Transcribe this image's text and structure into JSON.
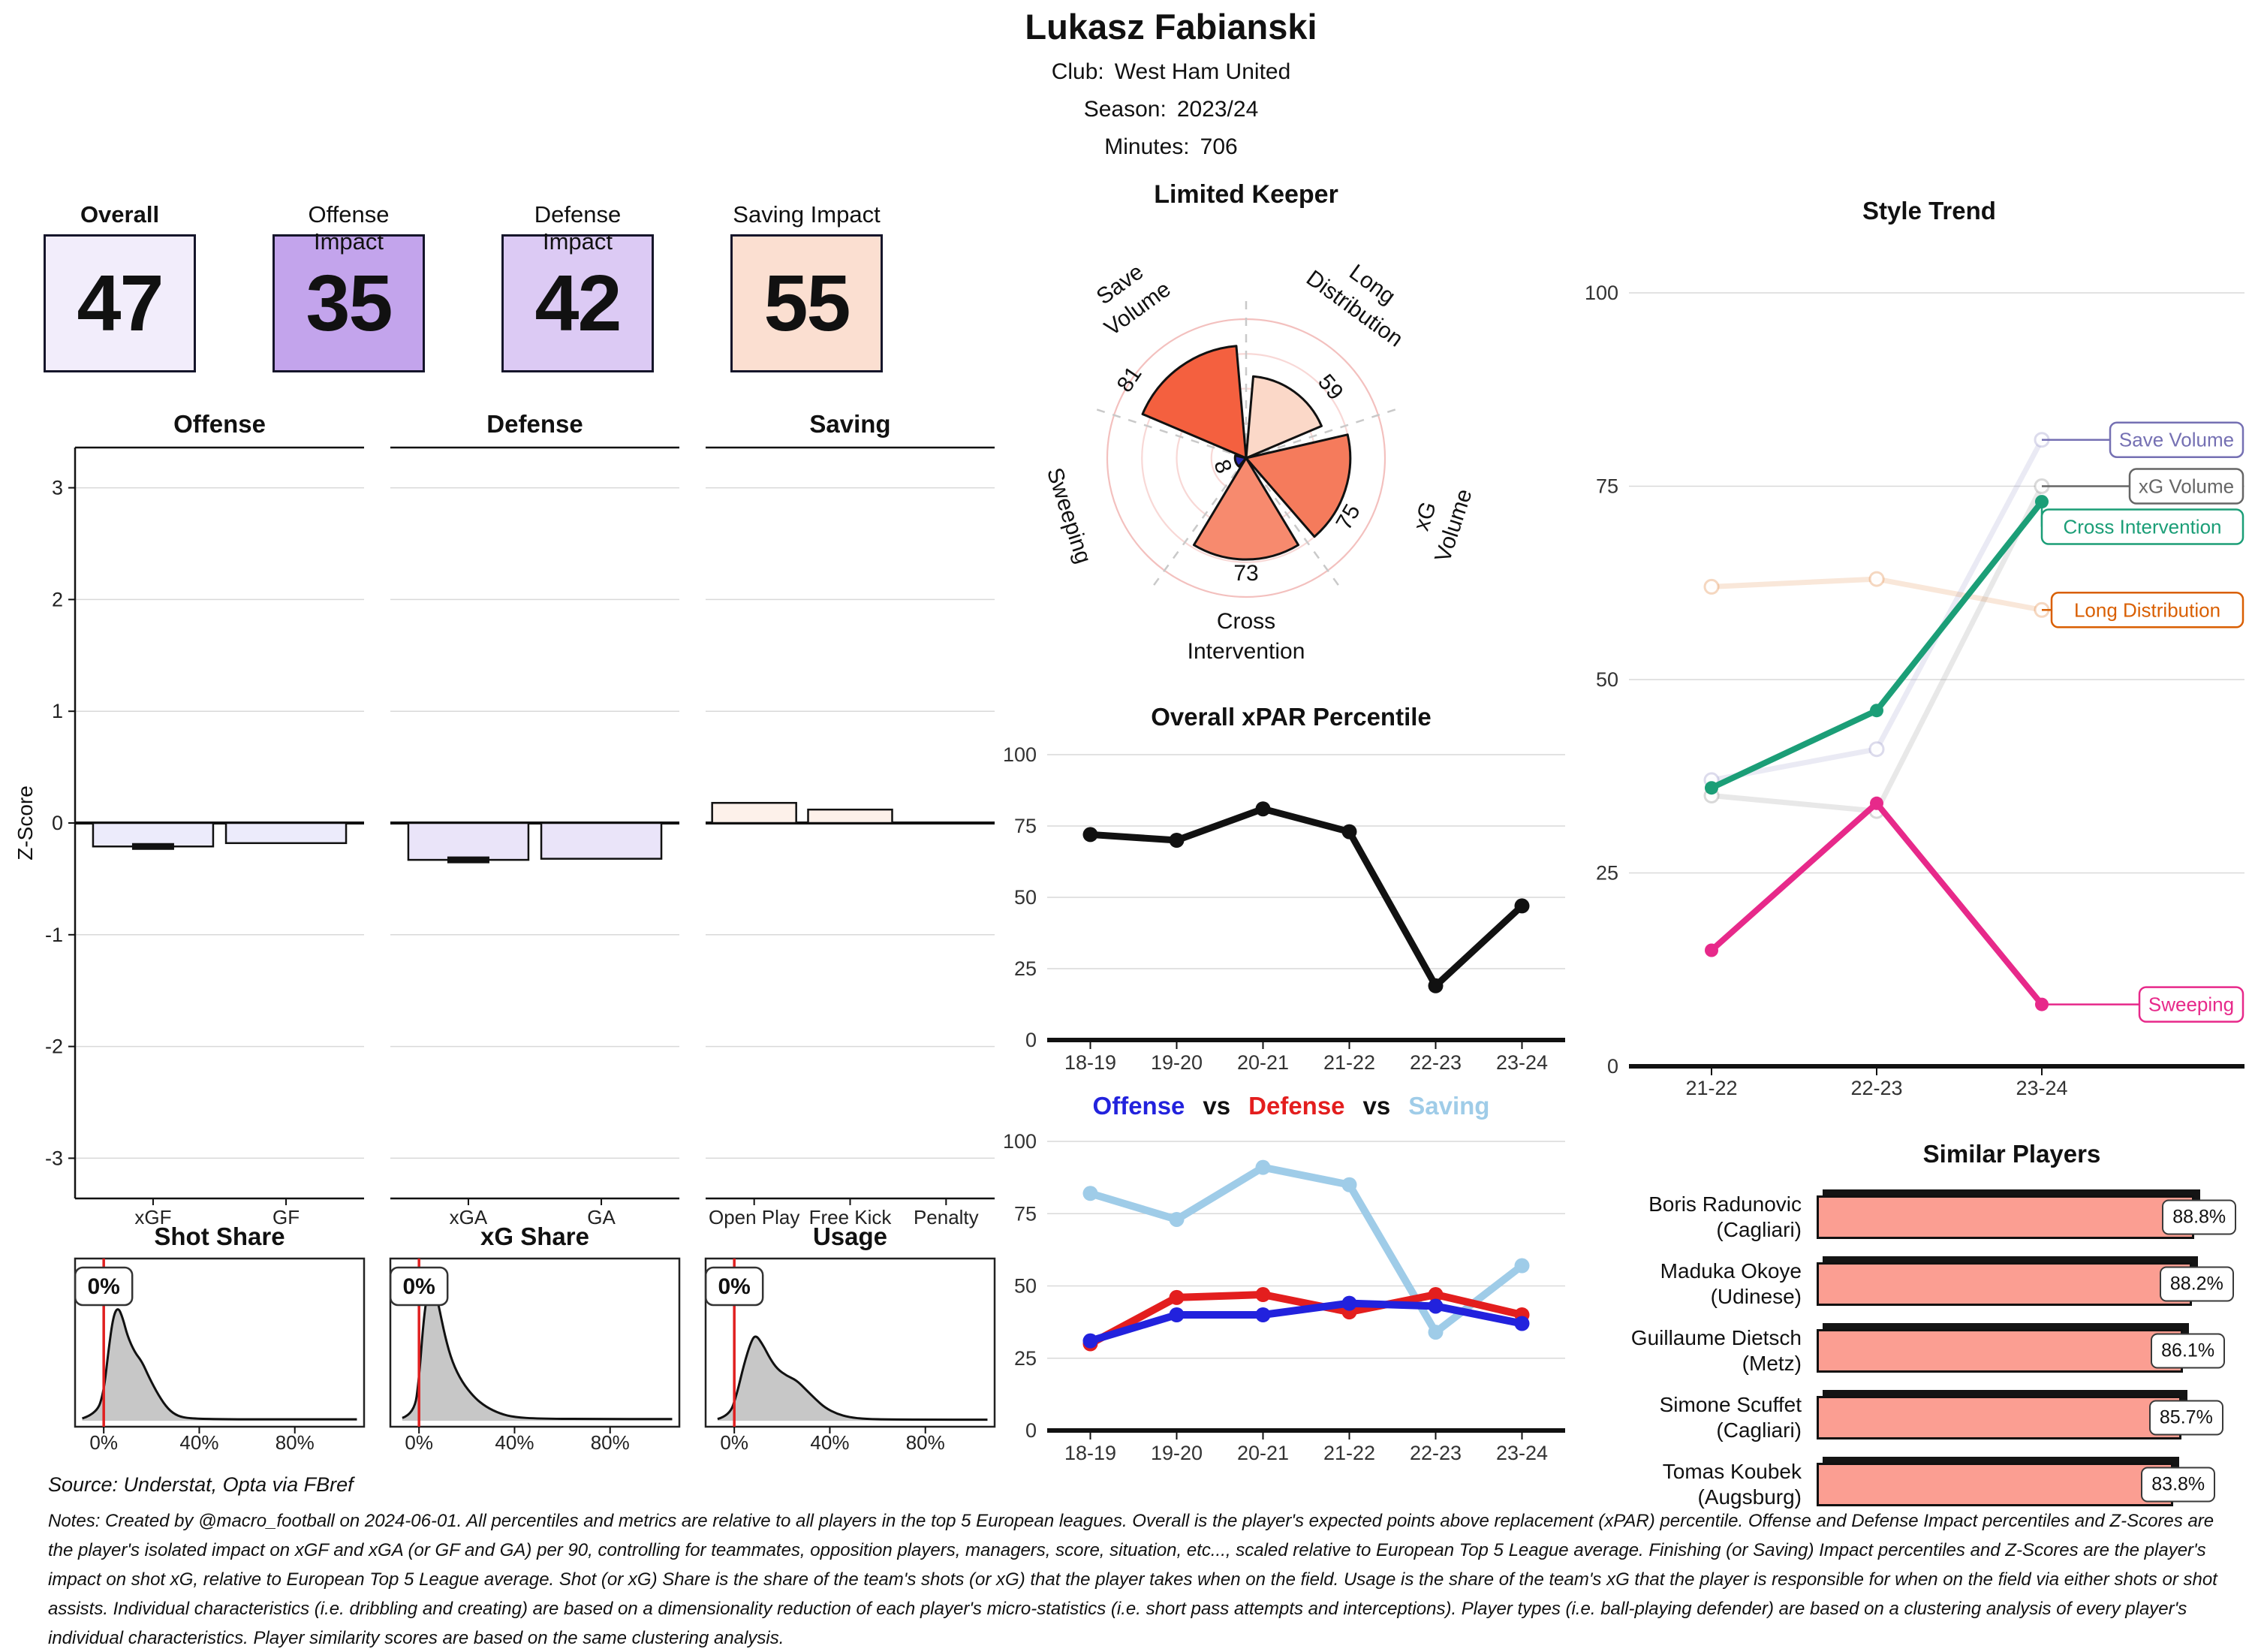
{
  "header": {
    "name": "Lukasz Fabianski",
    "club_label": "Club:",
    "club": "West Ham United",
    "season_label": "Season:",
    "season": "2023/24",
    "minutes_label": "Minutes:",
    "minutes": "706"
  },
  "cards": {
    "items": [
      {
        "label": "Overall",
        "value": "47",
        "bg": "#f2edfb",
        "bold": true
      },
      {
        "label": "Offense Impact",
        "value": "35",
        "bg": "#c3a4ec",
        "bold": false
      },
      {
        "label": "Defense Impact",
        "value": "42",
        "bg": "#dccaf4",
        "bold": false
      },
      {
        "label": "Saving Impact",
        "value": "55",
        "bg": "#fbdfd1",
        "bold": false
      }
    ]
  },
  "chart_data": [
    {
      "id": "impact_zscores",
      "type": "bar",
      "ylabel": "Z-Score",
      "ylim": 3.36,
      "yticks": [
        3,
        2,
        1,
        0,
        -1,
        -2,
        -3
      ],
      "panels": [
        {
          "title": "Offense",
          "bar_color": "#ecebfb",
          "bars": [
            {
              "label": "xGF",
              "value": -0.21,
              "marker": -0.21
            },
            {
              "label": "GF",
              "value": -0.18
            }
          ]
        },
        {
          "title": "Defense",
          "bar_color": "#eae4f9",
          "bars": [
            {
              "label": "xGA",
              "value": -0.33,
              "marker": -0.33
            },
            {
              "label": "GA",
              "value": -0.32
            }
          ]
        },
        {
          "title": "Saving",
          "bar_color": "#fdf1ea",
          "bars": [
            {
              "label": "Open Play",
              "value": 0.18
            },
            {
              "label": "Free Kick",
              "value": 0.12
            },
            {
              "label": "Penalty",
              "value": 0
            }
          ]
        }
      ]
    },
    {
      "id": "share_distributions",
      "type": "area",
      "panels": [
        {
          "title": "Shot Share",
          "badge": "0%",
          "marker_pct": 0,
          "peak_frac": 0.74,
          "ticks": [
            {
              "label": "0%",
              "pos": 0
            },
            {
              "label": "40%",
              "pos": 40
            },
            {
              "label": "80%",
              "pos": 80
            }
          ],
          "curve": [
            [
              -9,
              0.02
            ],
            [
              -3,
              0.06
            ],
            [
              0,
              0.25
            ],
            [
              2,
              0.62
            ],
            [
              4,
              0.92
            ],
            [
              6,
              1.0
            ],
            [
              8,
              0.9
            ],
            [
              10,
              0.74
            ],
            [
              13,
              0.6
            ],
            [
              16,
              0.52
            ],
            [
              19,
              0.38
            ],
            [
              23,
              0.22
            ],
            [
              27,
              0.1
            ],
            [
              31,
              0.04
            ],
            [
              36,
              0.02
            ],
            [
              45,
              0.015
            ],
            [
              60,
              0.012
            ],
            [
              80,
              0.012
            ],
            [
              106,
              0.012
            ]
          ]
        },
        {
          "title": "xG Share",
          "badge": "0%",
          "marker_pct": 0,
          "peak_frac": 0.9,
          "ticks": [
            {
              "label": "0%",
              "pos": 0
            },
            {
              "label": "40%",
              "pos": 40
            },
            {
              "label": "80%",
              "pos": 80
            }
          ],
          "curve": [
            [
              -7,
              0.02
            ],
            [
              -2,
              0.05
            ],
            [
              0,
              0.3
            ],
            [
              2,
              0.75
            ],
            [
              4,
              0.97
            ],
            [
              6,
              1.0
            ],
            [
              8,
              0.85
            ],
            [
              11,
              0.6
            ],
            [
              14,
              0.42
            ],
            [
              18,
              0.28
            ],
            [
              23,
              0.17
            ],
            [
              28,
              0.1
            ],
            [
              34,
              0.05
            ],
            [
              40,
              0.025
            ],
            [
              50,
              0.015
            ],
            [
              70,
              0.012
            ],
            [
              106,
              0.012
            ]
          ]
        },
        {
          "title": "Usage",
          "badge": "0%",
          "marker_pct": 0,
          "peak_frac": 0.56,
          "ticks": [
            {
              "label": "0%",
              "pos": 0
            },
            {
              "label": "40%",
              "pos": 40
            },
            {
              "label": "80%",
              "pos": 80
            }
          ],
          "curve": [
            [
              -7,
              0.02
            ],
            [
              -2,
              0.06
            ],
            [
              1,
              0.3
            ],
            [
              4,
              0.65
            ],
            [
              7,
              0.92
            ],
            [
              9,
              1.0
            ],
            [
              12,
              0.88
            ],
            [
              15,
              0.72
            ],
            [
              18,
              0.6
            ],
            [
              22,
              0.52
            ],
            [
              26,
              0.47
            ],
            [
              30,
              0.36
            ],
            [
              34,
              0.25
            ],
            [
              38,
              0.15
            ],
            [
              43,
              0.08
            ],
            [
              48,
              0.04
            ],
            [
              55,
              0.02
            ],
            [
              65,
              0.014
            ],
            [
              85,
              0.012
            ],
            [
              106,
              0.012
            ]
          ]
        }
      ]
    },
    {
      "id": "keeper_style_radar",
      "type": "polar_bar",
      "title": "Limited Keeper",
      "rings": [
        25,
        50,
        75,
        100
      ],
      "axes": [
        {
          "label_lines": [
            "Save",
            "Volume"
          ],
          "value": 81,
          "color": "#f4603f",
          "center_deg": -36,
          "val_offset_deg": -20
        },
        {
          "label_lines": [
            "Long",
            "Distribution"
          ],
          "value": 59,
          "color": "#fbd8c8",
          "center_deg": 36,
          "val_offset_deg": 14
        },
        {
          "label_lines": [
            "xG",
            "Volume"
          ],
          "value": 75,
          "color": "#f57b5c",
          "center_deg": 108,
          "val_offset_deg": 12
        },
        {
          "label_lines": [
            "Cross",
            "Intervention"
          ],
          "value": 73,
          "color": "#f78a6e",
          "center_deg": 180,
          "val_offset_deg": 0
        },
        {
          "label_lines": [
            "Sweeping"
          ],
          "value": 8,
          "color": "#2b2bb0",
          "center_deg": 252,
          "val_offset_deg": -2
        }
      ]
    },
    {
      "id": "xpar_trend",
      "type": "line",
      "title": "Overall xPAR Percentile",
      "categories": [
        "18-19",
        "19-20",
        "20-21",
        "21-22",
        "22-23",
        "23-24"
      ],
      "yticks": [
        0,
        25,
        50,
        75,
        100
      ],
      "series": [
        {
          "name": "Overall xPAR",
          "color": "#111111",
          "values": [
            72,
            70,
            81,
            73,
            19,
            47
          ]
        }
      ]
    },
    {
      "id": "ods_trend",
      "type": "line",
      "title_parts": [
        {
          "text": "Offense",
          "color": "#2222dd"
        },
        {
          "text": "vs",
          "color": "#111111"
        },
        {
          "text": "Defense",
          "color": "#e31e1e"
        },
        {
          "text": "vs",
          "color": "#111111"
        },
        {
          "text": "Saving",
          "color": "#9fcce8"
        }
      ],
      "categories": [
        "18-19",
        "19-20",
        "20-21",
        "21-22",
        "22-23",
        "23-24"
      ],
      "yticks": [
        0,
        25,
        50,
        75,
        100
      ],
      "series": [
        {
          "name": "Saving",
          "color": "#9fcce8",
          "values": [
            82,
            73,
            91,
            85,
            34,
            57
          ]
        },
        {
          "name": "Defense",
          "color": "#e31e1e",
          "values": [
            30,
            46,
            47,
            41,
            47,
            40
          ]
        },
        {
          "name": "Offense",
          "color": "#2222dd",
          "values": [
            31,
            40,
            40,
            44,
            43,
            37
          ]
        }
      ]
    },
    {
      "id": "style_trend",
      "type": "line",
      "title": "Style Trend",
      "categories": [
        "21-22",
        "22-23",
        "23-24"
      ],
      "yticks": [
        0,
        25,
        50,
        75,
        100
      ],
      "series": [
        {
          "name": "Save Volume",
          "color": "#7570b3",
          "faded": true,
          "values": [
            37,
            41,
            81
          ]
        },
        {
          "name": "xG Volume",
          "color": "#666666",
          "faded": true,
          "values": [
            35,
            33,
            75
          ]
        },
        {
          "name": "Long Distribution",
          "color": "#d95f02",
          "faded": true,
          "values": [
            62,
            63,
            59
          ]
        },
        {
          "name": "Cross Intervention",
          "color": "#1b9e77",
          "faded": false,
          "values": [
            36,
            46,
            73
          ]
        },
        {
          "name": "Sweeping",
          "color": "#e7298a",
          "faded": false,
          "values": [
            15,
            34,
            8
          ]
        }
      ]
    },
    {
      "id": "similar_players",
      "type": "bar",
      "title": "Similar Players",
      "players": [
        {
          "name": "Boris Radunovic",
          "club": "(Cagliari)",
          "pct_label": "88.8%",
          "value": 88.8
        },
        {
          "name": "Maduka Okoye",
          "club": "(Udinese)",
          "pct_label": "88.2%",
          "value": 88.2
        },
        {
          "name": "Guillaume Dietsch",
          "club": "(Metz)",
          "pct_label": "86.1%",
          "value": 86.1
        },
        {
          "name": "Simone Scuffet",
          "club": "(Cagliari)",
          "pct_label": "85.7%",
          "value": 85.7
        },
        {
          "name": "Tomas Koubek",
          "club": "(Augsburg)",
          "pct_label": "83.8%",
          "value": 83.8
        }
      ]
    }
  ],
  "footer": {
    "source": "Source: Understat, Opta via FBref",
    "notes": [
      "Notes: Created by @macro_football on 2024-06-01. All percentiles and metrics are relative to all players in the top 5 European leagues. Overall is the player's expected points above replacement (xPAR) percentile. Offense and Defense Impact percentiles and Z-Scores are",
      "the player's isolated impact on xGF and xGA (or GF and GA) per 90, controlling for teammates, opposition players, managers, score, situation, etc..., scaled relative to European Top 5 League average. Finishing (or Saving) Impact percentiles and Z-Scores are the player's",
      "impact on shot xG, relative to European Top 5 League average. Shot (or xG) Share is the share of the team's shots (or xG) that the player takes when on the field. Usage is the share of the team's xG that the player is responsible for when on the field via either shots or shot",
      "assists. Individual characteristics (i.e. dribbling and creating) are based on a dimensionality reduction of each player's micro-statistics (i.e. short pass attempts and interceptions). Player types (i.e. ball-playing defender) are based on a clustering analysis of every player's",
      "individual characteristics. Player similarity scores are based on the same clustering analysis."
    ]
  }
}
